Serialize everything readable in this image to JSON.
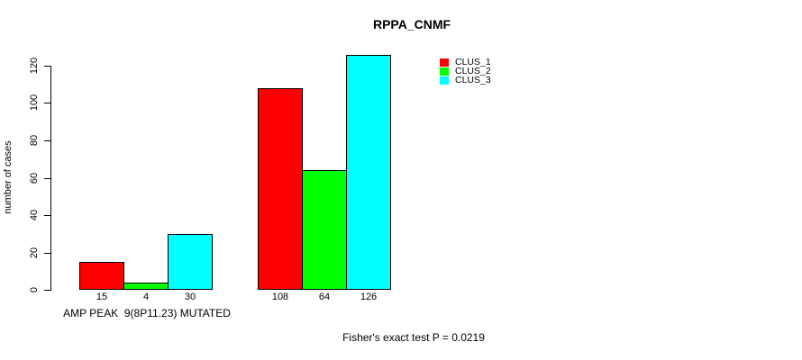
{
  "chart_data": {
    "type": "bar",
    "title": "RPPA_CNMF",
    "xlabel": "",
    "ylabel": "number of cases",
    "ylim": [
      0,
      120
    ],
    "yticks": [
      0,
      20,
      40,
      60,
      80,
      100,
      120
    ],
    "grid": false,
    "legend_position": "top-right",
    "categories": [
      "AMP PEAK  9(8P11.23) MUTATED",
      ""
    ],
    "series": [
      {
        "name": "CLUS_1",
        "color": "#ff0000",
        "values": [
          15,
          108
        ]
      },
      {
        "name": "CLUS_2",
        "color": "#00ff00",
        "values": [
          4,
          64
        ]
      },
      {
        "name": "CLUS_3",
        "color": "#00ffff",
        "values": [
          30,
          126
        ]
      }
    ],
    "bar_value_labels": [
      [
        15,
        4,
        30
      ],
      [
        108,
        64,
        126
      ]
    ],
    "annotation": "Fisher's exact test P = 0.0219"
  }
}
